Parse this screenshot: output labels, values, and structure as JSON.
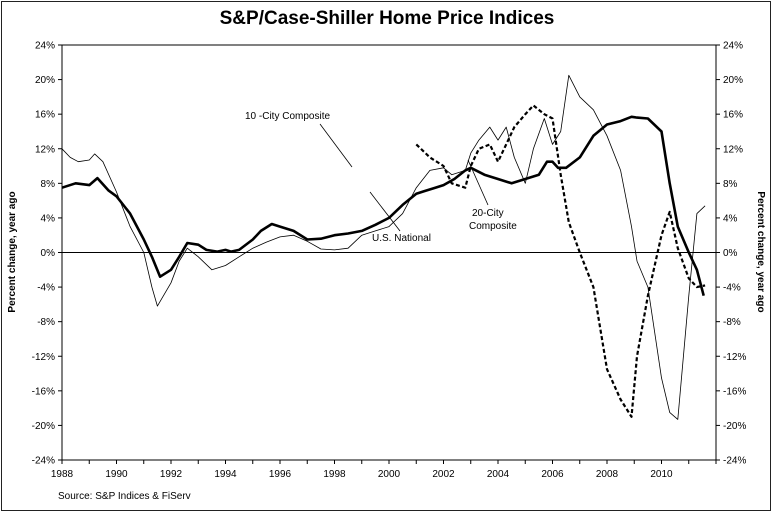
{
  "chart_data": {
    "type": "line",
    "title": "S&P/Case-Shiller Home Price Indices",
    "ylabel_left": "Percent change, year ago",
    "ylabel_right": "Percent change, year ago",
    "source": "Source: S&P Indices & FiServ",
    "x_ticks": [
      "1988",
      "1990",
      "1992",
      "1994",
      "1996",
      "1998",
      "2000",
      "2002",
      "2004",
      "2006",
      "2008",
      "2010"
    ],
    "y_ticks": [
      "24%",
      "20%",
      "16%",
      "12%",
      "8%",
      "4%",
      "0%",
      "-4%",
      "-8%",
      "-12%",
      "-16%",
      "-20%",
      "-24%"
    ],
    "xlim": [
      1988,
      2012
    ],
    "ylim": [
      -24,
      24
    ],
    "zero_line": true,
    "annotations": [
      {
        "text": "10 -City Composite",
        "series": "10-City Composite"
      },
      {
        "text": "U.S. National",
        "series": "U.S. National"
      },
      {
        "text": "20-City",
        "text2": "Composite",
        "series": "20-City Composite"
      }
    ],
    "series": [
      {
        "name": "U.S. National",
        "style": "thick",
        "x": [
          1988,
          1988.5,
          1989,
          1989.3,
          1989.7,
          1990,
          1990.5,
          1991,
          1991.3,
          1991.6,
          1992,
          1992.3,
          1992.6,
          1993,
          1993.3,
          1993.7,
          1994,
          1994.2,
          1994.5,
          1995,
          1995.3,
          1995.7,
          1996,
          1996.5,
          1997,
          1997.5,
          1998,
          1998.5,
          1999,
          1999.5,
          2000,
          2000.5,
          2001,
          2001.3,
          2001.7,
          2002,
          2002.4,
          2002.8,
          2003,
          2003.5,
          2004,
          2004.5,
          2005,
          2005.5,
          2005.8,
          2006,
          2006.2,
          2006.5,
          2007,
          2007.5,
          2008,
          2008.5,
          2008.9,
          2009.1,
          2009.5,
          2010,
          2010.3,
          2010.6,
          2011,
          2011.3,
          2011.55
        ],
        "y": [
          7.5,
          8.0,
          7.8,
          8.6,
          7.2,
          6.5,
          4.5,
          1.5,
          -0.5,
          -2.8,
          -2.0,
          -0.5,
          1.1,
          0.9,
          0.3,
          0.1,
          0.3,
          0.1,
          0.3,
          1.5,
          2.5,
          3.3,
          3.0,
          2.5,
          1.5,
          1.6,
          2.0,
          2.2,
          2.5,
          3.2,
          4.0,
          5.5,
          6.8,
          7.1,
          7.5,
          7.8,
          8.5,
          9.5,
          9.8,
          9.0,
          8.5,
          8.0,
          8.5,
          9.0,
          10.5,
          10.5,
          9.8,
          9.8,
          11.0,
          13.5,
          14.8,
          15.2,
          15.7,
          15.6,
          15.5,
          14.0,
          8.0,
          3.0,
          0.0,
          -2.0,
          -5.0
        ]
      },
      {
        "name": "10-City Composite",
        "style": "thin",
        "x": [
          1988,
          1988.3,
          1988.6,
          1989,
          1989.2,
          1989.5,
          1990,
          1990.5,
          1991,
          1991.3,
          1991.5,
          1992,
          1992.3,
          1992.6,
          1993,
          1993.5,
          1994,
          1994.5,
          1995,
          1995.5,
          1996,
          1996.5,
          1997,
          1997.5,
          1998,
          1998.5,
          1999,
          1999.5,
          2000,
          2000.5,
          2001,
          2001.5,
          2002,
          2002.3,
          2002.8,
          2003,
          2003.3,
          2003.7,
          2004,
          2004.3,
          2004.6,
          2005,
          2005.3,
          2005.7,
          2006,
          2006.3,
          2006.6,
          2007,
          2007.5,
          2008,
          2008.5,
          2008.9,
          2009.1,
          2009.5,
          2010,
          2010.3,
          2010.6,
          2011,
          2011.3,
          2011.6
        ],
        "y": [
          12.0,
          11.0,
          10.5,
          10.7,
          11.4,
          10.5,
          7.0,
          3.0,
          0.0,
          -4.0,
          -6.2,
          -3.5,
          -1.0,
          0.5,
          -0.5,
          -2.0,
          -1.5,
          -0.5,
          0.5,
          1.2,
          1.8,
          2.0,
          1.3,
          0.4,
          0.3,
          0.5,
          2.0,
          2.5,
          3.0,
          4.5,
          7.5,
          9.5,
          9.8,
          9.0,
          9.5,
          11.5,
          13.0,
          14.5,
          13.0,
          14.5,
          11.0,
          8.0,
          12.0,
          15.5,
          12.5,
          14.0,
          20.5,
          18.0,
          16.5,
          13.5,
          9.5,
          3.0,
          -1.0,
          -4.0,
          -14.5,
          -18.5,
          -19.3,
          -5.0,
          4.5,
          5.4
        ]
      },
      {
        "name": "20-City Composite",
        "style": "dashed",
        "x": [
          2001,
          2001.5,
          2002,
          2002.3,
          2002.8,
          2003,
          2003.3,
          2003.7,
          2004,
          2004.3,
          2004.6,
          2005,
          2005.3,
          2005.7,
          2006,
          2006.3,
          2006.6,
          2007,
          2007.5,
          2008,
          2008.5,
          2008.9,
          2009.1,
          2009.5,
          2010,
          2010.3,
          2010.6,
          2011,
          2011.3,
          2011.6
        ],
        "y": [
          12.5,
          11.0,
          10.0,
          8.0,
          7.5,
          10.0,
          12.0,
          12.5,
          10.5,
          12.5,
          14.5,
          16.0,
          17.0,
          16.0,
          15.5,
          9.0,
          3.5,
          0.0,
          -4.0,
          -13.5,
          -17.0,
          -19.0,
          -12.0,
          -5.0,
          2.0,
          4.7,
          0.5,
          -3.0,
          -4.0,
          -3.8
        ]
      }
    ]
  }
}
